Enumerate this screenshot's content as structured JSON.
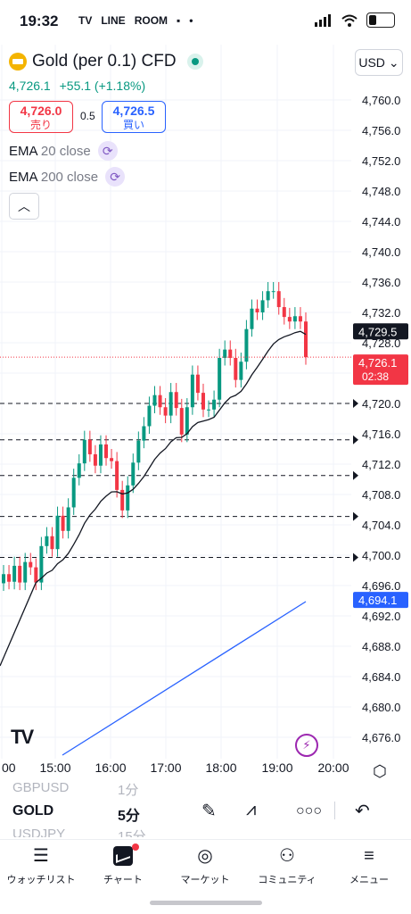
{
  "status_bar": {
    "time": "19:32",
    "apps": [
      "TV",
      "LINE",
      "ROOM",
      "▪",
      "•"
    ]
  },
  "header": {
    "symbol": "Gold (per 0.1) CFD",
    "currency": "USD",
    "last": "4,726.1",
    "change": "+55.1 (+1.18%)",
    "sell_price": "4,726.0",
    "sell_label": "売り",
    "spread": "0.5",
    "buy_price": "4,726.5",
    "buy_label": "買い"
  },
  "indicators": [
    {
      "name": "EMA",
      "params": "20 close"
    },
    {
      "name": "EMA",
      "params": "200 close"
    }
  ],
  "colors": {
    "up": "#089981",
    "down": "#f23645",
    "ema20": "#131722",
    "ema200": "#2962ff",
    "accent": "#2962ff"
  },
  "chart_data": {
    "type": "candlestick",
    "y_ticks": [
      "4,760.0",
      "4,756.0",
      "4,752.0",
      "4,748.0",
      "4,744.0",
      "4,740.0",
      "4,736.0",
      "4,732.0",
      "4,728.0",
      "4,724.0",
      "4,720.0",
      "4,716.0",
      "4,712.0",
      "4,708.0",
      "4,704.0",
      "4,700.0",
      "4,696.0",
      "4,692.0",
      "4,688.0",
      "4,684.0",
      "4,680.0",
      "4,676.0"
    ],
    "ylim": [
      4673,
      4763
    ],
    "x_ticks": [
      "00",
      "15:00",
      "16:00",
      "17:00",
      "18:00",
      "19:00",
      "20:00"
    ],
    "price_labels": [
      {
        "label": "4,729.5",
        "value": 4729.5,
        "style": "ema20"
      },
      {
        "label": "4,726.1",
        "sub": "02:38",
        "value": 4726.1,
        "style": "last"
      },
      {
        "label": "4,694.1",
        "value": 4694.1,
        "style": "ema200"
      }
    ],
    "dashed_levels": [
      4720.0,
      4715.2,
      4710.5,
      4705.1,
      4699.7
    ],
    "candles": [
      4697.5,
      4696.5,
      4698.6,
      4696.4,
      4699.1,
      4698.4,
      4696.4,
      4701.2,
      4702.5,
      4700.8,
      4705.2,
      4703.2,
      4706.3,
      4710.2,
      4712.1,
      4715.2,
      4713.3,
      4711.8,
      4714.6,
      4712.8,
      4712.4,
      4708.6,
      4705.9,
      4709.2,
      4712.2,
      4715.1,
      4717.0,
      4719.7,
      4721.1,
      4719.5,
      4718.4,
      4721.5,
      4719.4,
      4715.9,
      4719.5,
      4723.8,
      4721.4,
      4719.2,
      4719.2,
      4720.5,
      4726.0,
      4727.1,
      4726.0,
      4723.1,
      4725.5,
      4729.8,
      4732.5,
      4732.0,
      4733.6,
      4734.8,
      4734.8,
      4732.7,
      4731.4,
      4730.8,
      4731.5,
      4730.8,
      4726.1
    ],
    "ema20_tail": 4729.5,
    "ema200_tail": 4694.1
  },
  "toolbar": {
    "timeframes": [
      {
        "sym": "GBPUSD",
        "tf": "1分"
      },
      {
        "sym": "GOLD",
        "tf": "5分"
      },
      {
        "sym": "USDJPY",
        "tf": "15分"
      }
    ],
    "icons": [
      "pencil-icon",
      "drawing-tools-icon",
      "more-icon",
      "undo-icon"
    ]
  },
  "nav": [
    {
      "label": "ウォッチリスト",
      "icon": "watchlist-icon"
    },
    {
      "label": "チャート",
      "icon": "chart-icon"
    },
    {
      "label": "マーケット",
      "icon": "compass-icon"
    },
    {
      "label": "コミュニティ",
      "icon": "community-icon"
    },
    {
      "label": "メニュー",
      "icon": "menu-icon"
    }
  ]
}
